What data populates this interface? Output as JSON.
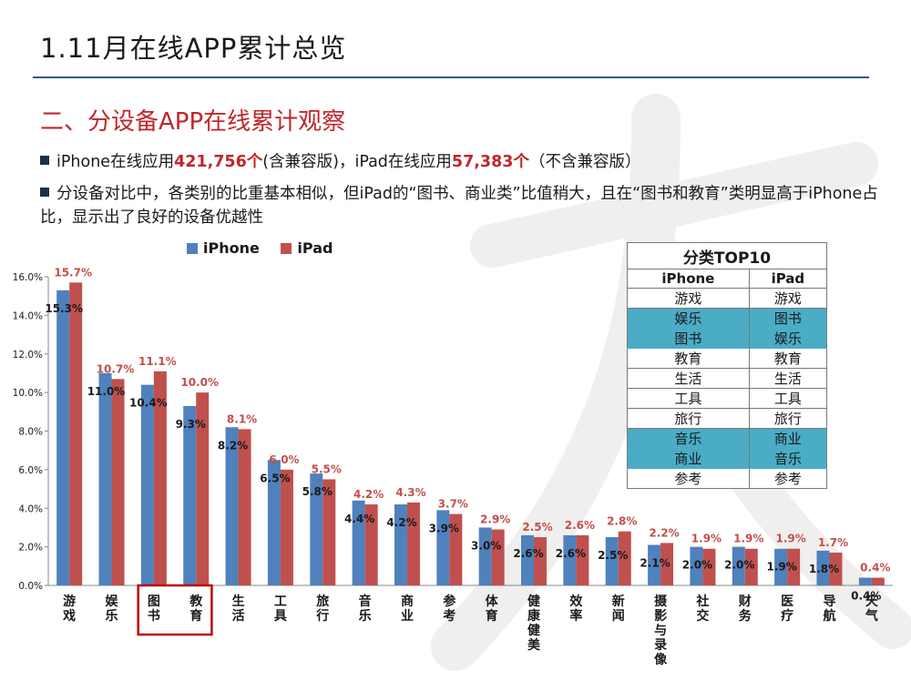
{
  "header": {
    "title": "1.11月在线APP累计总览",
    "section": "二、分设备APP在线累计观察"
  },
  "bullets": {
    "b1": {
      "p1": "iPhone在线应用",
      "v1": "421,756个",
      "p2": "(含兼容版)，iPad在线应用",
      "v2": "57,383个",
      "p3": "（不含兼容版）"
    },
    "b2": "分设备对比中，各类别的比重基本相似，但iPad的“图书、商业类”比值稍大，且在“图书和教育”类明显高于iPhone占比，显示出了良好的设备优越性"
  },
  "colors": {
    "iphone": "#4f81bd",
    "ipad": "#c0504d",
    "highlight": "#4bacc6",
    "frame": "#c00000"
  },
  "chart_data": {
    "type": "bar",
    "categories": [
      "游戏",
      "娱乐",
      "图书",
      "教育",
      "生活",
      "工具",
      "旅行",
      "音乐",
      "商业",
      "参考",
      "体育",
      "健康健美",
      "效率",
      "新闻",
      "摄影与录像",
      "社交",
      "财务",
      "医疗",
      "导航",
      "天气"
    ],
    "series": [
      {
        "name": "iPhone",
        "values": [
          15.3,
          11.0,
          10.4,
          9.3,
          8.2,
          6.5,
          5.8,
          4.4,
          4.2,
          3.9,
          3.0,
          2.6,
          2.6,
          2.5,
          2.1,
          2.0,
          2.0,
          1.9,
          1.8,
          0.4
        ]
      },
      {
        "name": "iPad",
        "values": [
          15.7,
          10.7,
          11.1,
          10.0,
          8.1,
          6.0,
          5.5,
          4.2,
          4.3,
          3.7,
          2.9,
          2.5,
          2.6,
          2.8,
          2.2,
          1.9,
          1.9,
          1.9,
          1.7,
          0.4
        ]
      }
    ],
    "y_ticks": [
      "0.0%",
      "2.0%",
      "4.0%",
      "6.0%",
      "8.0%",
      "10.0%",
      "12.0%",
      "14.0%",
      "16.0%"
    ],
    "ylim": [
      0,
      16
    ],
    "legend": "top-left",
    "highlighted_categories": [
      "图书",
      "教育"
    ]
  },
  "top10": {
    "title": "分类TOP10",
    "headers": [
      "iPhone",
      "iPad"
    ],
    "rows": [
      [
        "游戏",
        "游戏"
      ],
      [
        "娱乐",
        "图书"
      ],
      [
        "图书",
        "娱乐"
      ],
      [
        "教育",
        "教育"
      ],
      [
        "生活",
        "生活"
      ],
      [
        "工具",
        "工具"
      ],
      [
        "旅行",
        "旅行"
      ],
      [
        "音乐",
        "商业"
      ],
      [
        "商业",
        "音乐"
      ],
      [
        "参考",
        "参考"
      ]
    ]
  }
}
